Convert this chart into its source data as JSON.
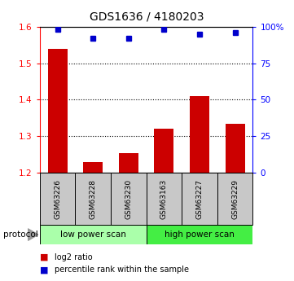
{
  "title": "GDS1636 / 4180203",
  "samples": [
    "GSM63226",
    "GSM63228",
    "GSM63230",
    "GSM63163",
    "GSM63227",
    "GSM63229"
  ],
  "log2_ratio": [
    1.54,
    1.23,
    1.255,
    1.32,
    1.41,
    1.335
  ],
  "percentile_rank": [
    98,
    92,
    92,
    98,
    95,
    96
  ],
  "bar_color": "#cc0000",
  "dot_color": "#0000cc",
  "ylim_left": [
    1.2,
    1.6
  ],
  "ylim_right": [
    0,
    100
  ],
  "yticks_left": [
    1.2,
    1.3,
    1.4,
    1.5,
    1.6
  ],
  "yticks_right": [
    0,
    25,
    50,
    75,
    100
  ],
  "ytick_labels_right": [
    "0",
    "25",
    "50",
    "75",
    "100%"
  ],
  "dotted_lines": [
    1.3,
    1.4,
    1.5
  ],
  "groups": [
    {
      "label": "low power scan",
      "n_samples": 3,
      "color": "#aaffaa"
    },
    {
      "label": "high power scan",
      "n_samples": 3,
      "color": "#44ee44"
    }
  ],
  "protocol_label": "protocol",
  "legend_items": [
    {
      "label": "log2 ratio",
      "color": "#cc0000"
    },
    {
      "label": "percentile rank within the sample",
      "color": "#0000cc"
    }
  ],
  "background_color": "#ffffff",
  "sample_box_color": "#c8c8c8",
  "bar_width": 0.55
}
